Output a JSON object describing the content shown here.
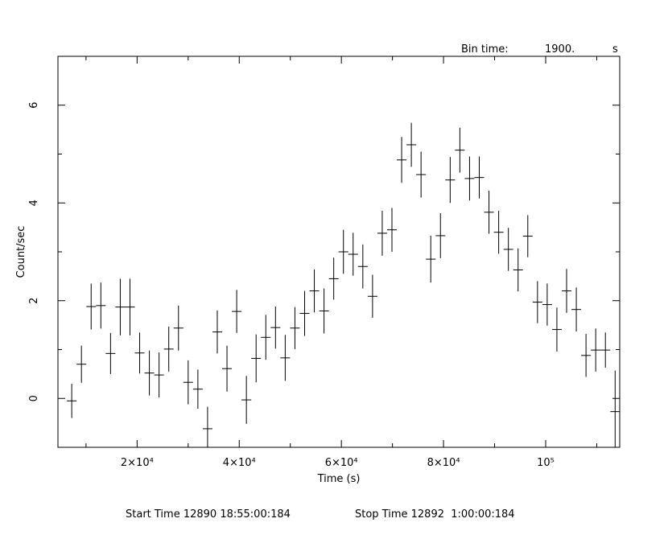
{
  "chart_data": {
    "type": "scatter",
    "title": "",
    "xlabel": "Time (s)",
    "ylabel": "Count/sec",
    "xlim": [
      4500,
      114500
    ],
    "ylim": [
      -1.0,
      7.0
    ],
    "x_ticks": [
      {
        "value": 20000,
        "label": "2×10⁴"
      },
      {
        "value": 40000,
        "label": "4×10⁴"
      },
      {
        "value": 60000,
        "label": "6×10⁴"
      },
      {
        "value": 80000,
        "label": "8×10⁴"
      },
      {
        "value": 100000,
        "label": "10⁵"
      }
    ],
    "y_ticks": [
      {
        "value": 0,
        "label": "0"
      },
      {
        "value": 2,
        "label": "2"
      },
      {
        "value": 4,
        "label": "4"
      },
      {
        "value": 6,
        "label": "6"
      }
    ],
    "bin_time": {
      "label": "Bin time:",
      "value": "1900.",
      "unit": "s"
    },
    "footer": {
      "start": "Start Time 12890 18:55:00:184",
      "stop": "Stop Time 12892  1:00:00:184"
    },
    "xerr": 950,
    "points": [
      {
        "x": 7200,
        "y": -0.05,
        "yerr": 0.35
      },
      {
        "x": 9100,
        "y": 0.7,
        "yerr": 0.38
      },
      {
        "x": 11000,
        "y": 1.88,
        "yerr": 0.47
      },
      {
        "x": 12900,
        "y": 1.9,
        "yerr": 0.47
      },
      {
        "x": 14800,
        "y": 0.92,
        "yerr": 0.42
      },
      {
        "x": 16700,
        "y": 1.87,
        "yerr": 0.58
      },
      {
        "x": 18600,
        "y": 1.87,
        "yerr": 0.58
      },
      {
        "x": 20500,
        "y": 0.93,
        "yerr": 0.42
      },
      {
        "x": 22400,
        "y": 0.52,
        "yerr": 0.46
      },
      {
        "x": 24300,
        "y": 0.48,
        "yerr": 0.46
      },
      {
        "x": 26200,
        "y": 1.01,
        "yerr": 0.46
      },
      {
        "x": 28100,
        "y": 1.44,
        "yerr": 0.46
      },
      {
        "x": 30000,
        "y": 0.33,
        "yerr": 0.45
      },
      {
        "x": 31900,
        "y": 0.19,
        "yerr": 0.4
      },
      {
        "x": 33800,
        "y": -0.62,
        "yerr": 0.45
      },
      {
        "x": 35700,
        "y": 1.36,
        "yerr": 0.44
      },
      {
        "x": 37600,
        "y": 0.61,
        "yerr": 0.47
      },
      {
        "x": 39500,
        "y": 1.78,
        "yerr": 0.44
      },
      {
        "x": 41400,
        "y": -0.03,
        "yerr": 0.49
      },
      {
        "x": 43300,
        "y": 0.82,
        "yerr": 0.49
      },
      {
        "x": 45200,
        "y": 1.25,
        "yerr": 0.46
      },
      {
        "x": 47100,
        "y": 1.45,
        "yerr": 0.43
      },
      {
        "x": 49000,
        "y": 0.83,
        "yerr": 0.47
      },
      {
        "x": 50900,
        "y": 1.44,
        "yerr": 0.43
      },
      {
        "x": 52800,
        "y": 1.74,
        "yerr": 0.46
      },
      {
        "x": 54700,
        "y": 2.2,
        "yerr": 0.44
      },
      {
        "x": 56600,
        "y": 1.79,
        "yerr": 0.46
      },
      {
        "x": 58500,
        "y": 2.45,
        "yerr": 0.43
      },
      {
        "x": 60400,
        "y": 3.0,
        "yerr": 0.45
      },
      {
        "x": 62300,
        "y": 2.95,
        "yerr": 0.44
      },
      {
        "x": 64200,
        "y": 2.7,
        "yerr": 0.45
      },
      {
        "x": 66100,
        "y": 2.09,
        "yerr": 0.44
      },
      {
        "x": 68000,
        "y": 3.38,
        "yerr": 0.46
      },
      {
        "x": 69900,
        "y": 3.45,
        "yerr": 0.45
      },
      {
        "x": 71800,
        "y": 4.88,
        "yerr": 0.47
      },
      {
        "x": 73700,
        "y": 5.19,
        "yerr": 0.45
      },
      {
        "x": 75600,
        "y": 4.58,
        "yerr": 0.47
      },
      {
        "x": 77500,
        "y": 2.85,
        "yerr": 0.48
      },
      {
        "x": 79400,
        "y": 3.33,
        "yerr": 0.46
      },
      {
        "x": 81300,
        "y": 4.47,
        "yerr": 0.47
      },
      {
        "x": 83200,
        "y": 5.08,
        "yerr": 0.46
      },
      {
        "x": 85100,
        "y": 4.5,
        "yerr": 0.45
      },
      {
        "x": 87000,
        "y": 4.52,
        "yerr": 0.43
      },
      {
        "x": 88900,
        "y": 3.81,
        "yerr": 0.44
      },
      {
        "x": 90800,
        "y": 3.4,
        "yerr": 0.44
      },
      {
        "x": 92700,
        "y": 3.05,
        "yerr": 0.44
      },
      {
        "x": 94600,
        "y": 2.63,
        "yerr": 0.44
      },
      {
        "x": 96500,
        "y": 3.32,
        "yerr": 0.43
      },
      {
        "x": 98400,
        "y": 1.97,
        "yerr": 0.43
      },
      {
        "x": 100300,
        "y": 1.92,
        "yerr": 0.43
      },
      {
        "x": 102200,
        "y": 1.41,
        "yerr": 0.45
      },
      {
        "x": 104100,
        "y": 2.2,
        "yerr": 0.45
      },
      {
        "x": 106000,
        "y": 1.82,
        "yerr": 0.45
      },
      {
        "x": 107900,
        "y": 0.88,
        "yerr": 0.44
      },
      {
        "x": 109800,
        "y": 0.99,
        "yerr": 0.44
      },
      {
        "x": 111700,
        "y": 0.99,
        "yerr": 0.36
      },
      {
        "x": 113600,
        "y": -0.27,
        "yerr": 0.84
      }
    ]
  }
}
